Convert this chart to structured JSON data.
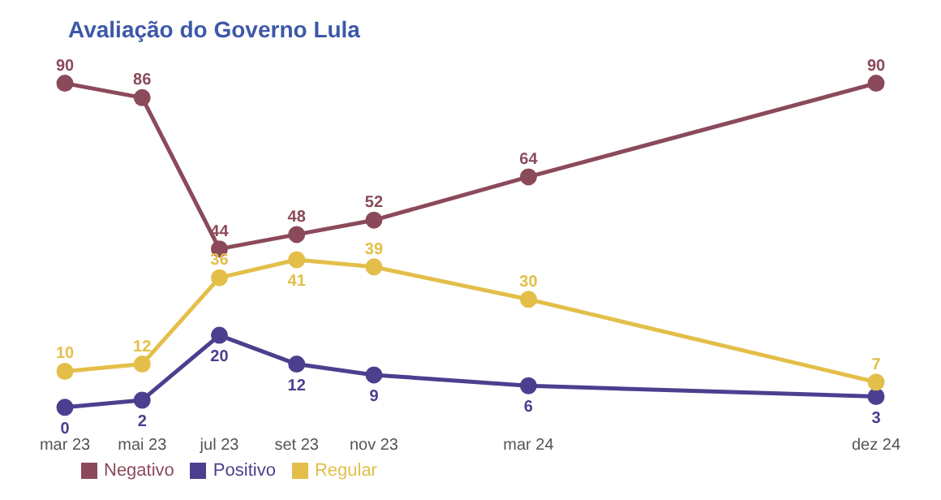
{
  "chart_data": {
    "type": "line",
    "title": "Avaliação do Governo Lula",
    "x": [
      "2023-03",
      "2023-05",
      "2023-07",
      "2023-09",
      "2023-11",
      "2024-03",
      "2024-12"
    ],
    "xticks": [
      {
        "value": "2023-03",
        "label": "mar 23"
      },
      {
        "value": "2023-05",
        "label": "mai 23"
      },
      {
        "value": "2023-07",
        "label": "jul 23"
      },
      {
        "value": "2023-09",
        "label": "set 23"
      },
      {
        "value": "2023-11",
        "label": "nov 23"
      },
      {
        "value": "2024-03",
        "label": "mar 24"
      },
      {
        "value": "2024-12",
        "label": "dez 24"
      }
    ],
    "xlim": [
      "2023-03",
      "2024-12"
    ],
    "tick_labels": "x",
    "series": [
      {
        "name": "Positivo",
        "color": "#4b3f8f",
        "values": [
          0,
          2,
          20,
          12,
          9,
          6,
          3
        ]
      },
      {
        "name": "Regular",
        "color": "#e3bf4a",
        "values": [
          10,
          12,
          36,
          41,
          39,
          30,
          7
        ]
      },
      {
        "name": "Negativo",
        "color": "#8b4a5a",
        "values": [
          90,
          86,
          44,
          48,
          52,
          64,
          90
        ]
      }
    ],
    "data_labels": true,
    "marker": "circle",
    "line_style": "solid",
    "grid": false,
    "legend": "bottom left"
  }
}
